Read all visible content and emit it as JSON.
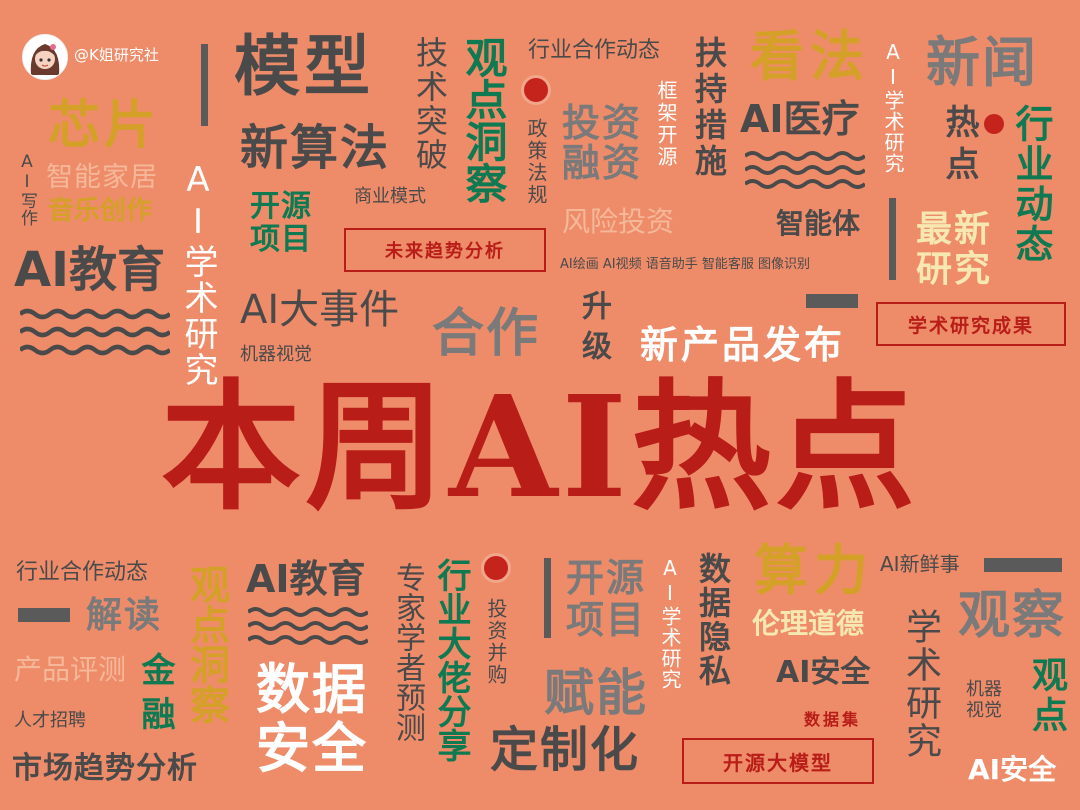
{
  "colors": {
    "background": "#EE8C6A",
    "headline_red": "#B81D18",
    "dark": "#4A4A4A",
    "gray": "#7A7A7A",
    "green": "#0F7A52",
    "gold": "#D4A028",
    "cream": "#F7E7B0",
    "white": "#FFFFFF",
    "peach": "#F5B899"
  },
  "account": {
    "handle": "@K姐研究社",
    "avatar_icon": "avatar-girl-icon"
  },
  "headline": "本周AI热点",
  "top": {
    "moxing": "模型",
    "jishu_tupo": "技术突破",
    "guandian_dongcha": "观点洞察",
    "hangye_hezuo": "行业合作动态",
    "fuchi_cuoshi": "扶持措施",
    "kanfa": "看法",
    "ai_xueshu_yanjiu": "AI学术研究",
    "xinwen": "新闻",
    "xinpian": "芯片",
    "ai_xiezuo": "AI写作",
    "zhineng_jiaju": "智能家居",
    "yinyue_chuangzuo": "音乐创作",
    "ai_xueshu_yanjiu_2": "AI学术研究",
    "xin_suanfa": "新算法",
    "zhengce_fagui": "政策法规",
    "touzi_rongzi": "投资融资",
    "kuangjia_kaiyuan": "框架开源",
    "ai_yiliao": "AI医疗",
    "redian": "热点",
    "hangye_dongtai": "行业动态",
    "kaiyuan_xiangmu": "开源项目",
    "shangye_moshi": "商业模式",
    "fengxian_touzi": "风险投资",
    "zhinengti": "智能体",
    "zuixin_yanjiu": "最新研究",
    "ai_jiaoyu": "AI教育",
    "weilai_qushi": "未来趋势分析",
    "ai_tools": "AI绘画 AI视频 语音助手 智能客服 图像识别",
    "ai_dashijian": "AI大事件",
    "jiqi_shijue": "机器视觉",
    "hezuo": "合作",
    "shengji": "升级",
    "xin_chanpin_fabu": "新产品发布",
    "xueshu_chengguo": "学术研究成果"
  },
  "bottom": {
    "hangye_hezuo": "行业合作动态",
    "jiedu": "解读",
    "chanpin_pingce": "产品评测",
    "rencai_zhaopin": "人才招聘",
    "shichang_qushi": "市场趋势分析",
    "guandian_dongcha": "观点洞察",
    "jinrong": "金融",
    "ai_jiaoyu": "AI教育",
    "shuju_anquan": "数据安全",
    "zhuanjia_yuce": "专家学者预测",
    "dalao_fenxiang": "行业大佬分享",
    "touzi_binggou": "投资并购",
    "kaiyuan_xiangmu": "开源项目",
    "funeng": "赋能",
    "dingzhihua": "定制化",
    "ai_xueshu_yanjiu": "AI学术研究",
    "shuju_yinsi": "数据隐私",
    "suanli": "算力",
    "lunli_daode": "伦理道德",
    "ai_anquan": "AI安全",
    "shujuji": "数据集",
    "kaiyuan_damoxing": "开源大模型",
    "ai_xinxianshi": "AI新鲜事",
    "guancha": "观察",
    "xueshu_yanjiu": "学术研究",
    "jiqi_shijue": "机器视觉",
    "guandian": "观点",
    "ai_anquan_2": "AI安全"
  }
}
